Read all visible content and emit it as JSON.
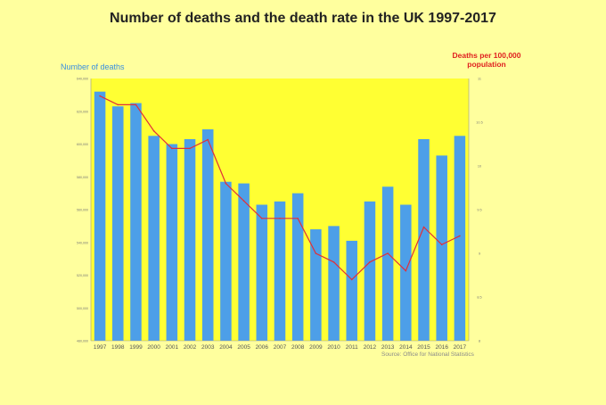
{
  "chart_data": {
    "type": "bar",
    "title": "Number of deaths and the death rate in the UK 1997-2017",
    "ylabel": "Number of deaths",
    "y2label_line1": "Deaths per 100,000",
    "y2label_line2": "population",
    "source": "Source: Office for National Statistics",
    "categories": [
      "1997",
      "1998",
      "1999",
      "2000",
      "2001",
      "2002",
      "2003",
      "2004",
      "2005",
      "2006",
      "2007",
      "2008",
      "2009",
      "2010",
      "2011",
      "2012",
      "2013",
      "2014",
      "2015",
      "2016",
      "2017"
    ],
    "ylim": [
      480000,
      640000
    ],
    "yticks": [
      480000,
      500000,
      520000,
      540000,
      560000,
      580000,
      600000,
      620000,
      640000
    ],
    "ytick_labels": [
      "480,000",
      "500,000",
      "520,000",
      "540,000",
      "560,000",
      "580,000",
      "600,000",
      "620,000",
      "640,000"
    ],
    "y2lim": [
      8,
      11
    ],
    "y2ticks": [
      8,
      8.5,
      9,
      9.5,
      10,
      10.5,
      11
    ],
    "y2tick_labels": [
      "8",
      "8.5",
      "9",
      "9.5",
      "10",
      "10.5",
      "11"
    ],
    "series": [
      {
        "type": "bar",
        "axis": "left",
        "values": [
          632000,
          623000,
          625000,
          605000,
          600000,
          603000,
          609000,
          577000,
          576000,
          563000,
          565000,
          570000,
          548000,
          550000,
          541000,
          565000,
          574000,
          563000,
          603000,
          593000,
          605000
        ]
      },
      {
        "type": "line",
        "axis": "right",
        "values": [
          10.8,
          10.7,
          10.7,
          10.4,
          10.2,
          10.2,
          10.3,
          9.8,
          9.6,
          9.4,
          9.4,
          9.4,
          9.0,
          8.9,
          8.7,
          8.9,
          9.0,
          8.8,
          9.3,
          9.1,
          9.2
        ]
      }
    ],
    "colors": {
      "bar": "#4d9fe8",
      "line": "#e0303a",
      "plot_bg": "#ffff33",
      "page_bg": "#ffff9e"
    }
  }
}
